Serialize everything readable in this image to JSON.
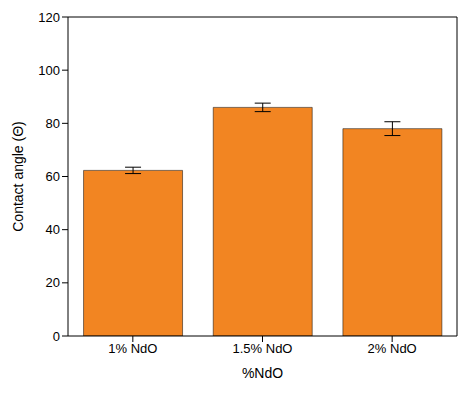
{
  "chart_data": {
    "type": "bar",
    "categories": [
      "1% NdO",
      "1.5% NdO",
      "2% NdO"
    ],
    "values": [
      62.3,
      86,
      78
    ],
    "errors": [
      1.2,
      1.6,
      2.6
    ],
    "color": "#f28522",
    "xlabel": "%NdO",
    "ylabel": "Contact angle (Θ)",
    "ylim": [
      0,
      120
    ],
    "yticks": [
      0,
      20,
      40,
      60,
      80,
      100,
      120
    ],
    "grid": false
  }
}
